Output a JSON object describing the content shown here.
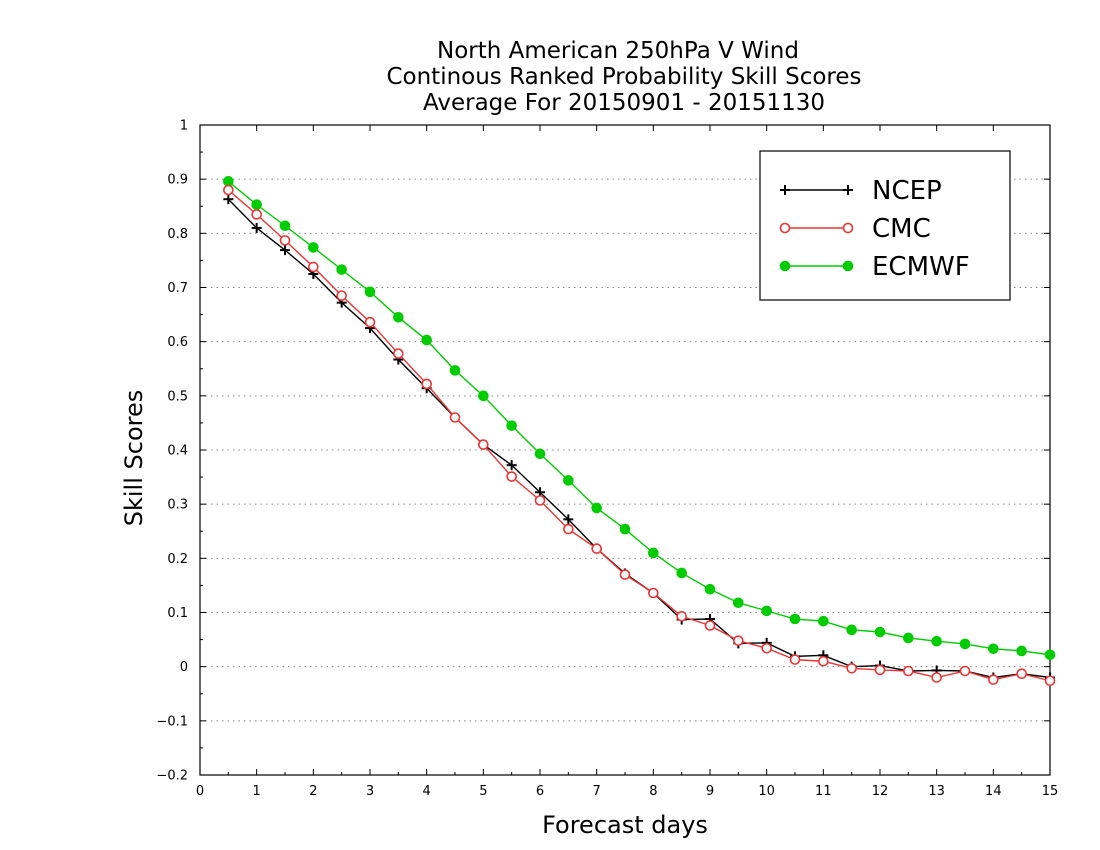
{
  "chart_data": {
    "type": "line",
    "title": [
      "North American 250hPa V Wind",
      "Continous Ranked Probability Skill Scores",
      "Average For 20150901 - 20151130"
    ],
    "xlabel": "Forecast days",
    "ylabel": "Skill Scores",
    "xlim": [
      0,
      15
    ],
    "ylim": [
      -0.2,
      1
    ],
    "xticks": [
      0,
      1,
      2,
      3,
      4,
      5,
      6,
      7,
      8,
      9,
      10,
      11,
      12,
      13,
      14,
      15
    ],
    "yticks": [
      -0.2,
      -0.1,
      0,
      0.1,
      0.2,
      0.3,
      0.4,
      0.5,
      0.6,
      0.7,
      0.8,
      0.9,
      1
    ],
    "ytick_labels": [
      "−0.2",
      "−0.1",
      "0",
      "0.1",
      "0.2",
      "0.3",
      "0.4",
      "0.5",
      "0.6",
      "0.7",
      "0.8",
      "0.9",
      "1"
    ],
    "grid": "horizontal dotted",
    "legend_position": "top-right",
    "x": [
      0.5,
      1,
      1.5,
      2,
      2.5,
      3,
      3.5,
      4,
      4.5,
      5,
      5.5,
      6,
      6.5,
      7,
      7.5,
      8,
      8.5,
      9,
      9.5,
      10,
      10.5,
      11,
      11.5,
      12,
      12.5,
      13,
      13.5,
      14,
      14.5,
      15
    ],
    "series": [
      {
        "name": "NCEP",
        "color": "#000000",
        "marker": "plus",
        "values": [
          0.863,
          0.81,
          0.769,
          0.725,
          0.672,
          0.625,
          0.567,
          0.514,
          0.46,
          0.41,
          0.372,
          0.322,
          0.272,
          0.218,
          0.172,
          0.136,
          0.087,
          0.088,
          0.043,
          0.044,
          0.019,
          0.021,
          0.0,
          0.002,
          -0.008,
          -0.007,
          -0.008,
          -0.02,
          -0.013,
          -0.02
        ]
      },
      {
        "name": "CMC",
        "color": "#ee3333",
        "marker": "open-circle",
        "values": [
          0.88,
          0.835,
          0.787,
          0.738,
          0.685,
          0.636,
          0.578,
          0.522,
          0.46,
          0.41,
          0.351,
          0.307,
          0.254,
          0.218,
          0.17,
          0.136,
          0.093,
          0.076,
          0.048,
          0.034,
          0.013,
          0.01,
          -0.003,
          -0.006,
          -0.008,
          -0.02,
          -0.008,
          -0.024,
          -0.013,
          -0.026
        ]
      },
      {
        "name": "ECMWF",
        "color": "#00cc00",
        "marker": "filled-circle",
        "values": [
          0.896,
          0.853,
          0.814,
          0.774,
          0.733,
          0.692,
          0.645,
          0.603,
          0.547,
          0.5,
          0.445,
          0.393,
          0.344,
          0.293,
          0.254,
          0.21,
          0.173,
          0.143,
          0.118,
          0.103,
          0.088,
          0.084,
          0.068,
          0.064,
          0.053,
          0.047,
          0.042,
          0.033,
          0.029,
          0.022
        ]
      }
    ]
  }
}
